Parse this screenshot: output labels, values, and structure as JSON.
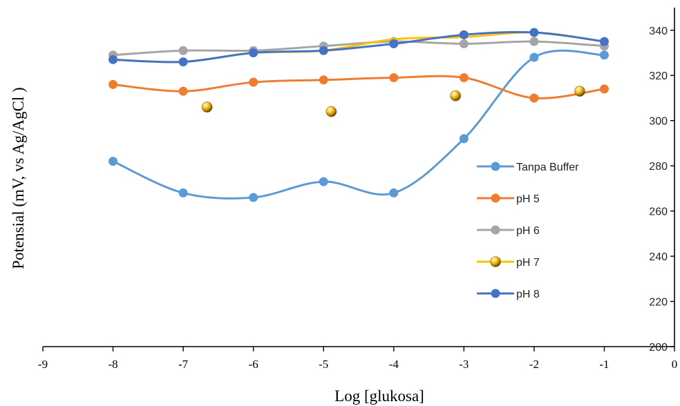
{
  "chart_data": {
    "type": "line",
    "title": "",
    "xlabel": "Log [glukosa]",
    "ylabel": "Potensial (mV, vs Ag/AgCl )",
    "xlim": [
      -9,
      0
    ],
    "ylim": [
      200,
      350
    ],
    "x_ticks": [
      "-9",
      "-8",
      "-7",
      "-6",
      "-5",
      "-4",
      "-3",
      "-2",
      "-1",
      "0"
    ],
    "y_ticks": [
      "200",
      "220",
      "240",
      "260",
      "280",
      "300",
      "320",
      "340"
    ],
    "grid": false,
    "legend_position": "right",
    "series": [
      {
        "name": "Tanpa Buffer",
        "color": "#5b9bd5",
        "marker": "circle",
        "points": [
          [
            -8,
            282
          ],
          [
            -7,
            268
          ],
          [
            -6,
            266
          ],
          [
            -5,
            273
          ],
          [
            -4,
            268
          ],
          [
            -3,
            292
          ],
          [
            -2,
            328
          ],
          [
            -1,
            329
          ]
        ]
      },
      {
        "name": "pH 5",
        "color": "#ed7d31",
        "marker": "circle",
        "points": [
          [
            -8,
            316
          ],
          [
            -7,
            313
          ],
          [
            -6,
            317
          ],
          [
            -5,
            318
          ],
          [
            -4,
            319
          ],
          [
            -3,
            319
          ],
          [
            -2,
            310
          ],
          [
            -1,
            314
          ]
        ]
      },
      {
        "name": "pH 6",
        "color": "#a5a5a5",
        "marker": "circle",
        "points": [
          [
            -8,
            329
          ],
          [
            -7,
            331
          ],
          [
            -6,
            331
          ],
          [
            -5,
            333
          ],
          [
            -4,
            335
          ],
          [
            -3,
            334
          ],
          [
            -2,
            335
          ],
          [
            -1,
            333
          ]
        ]
      },
      {
        "name": "pH 7",
        "color": "#ffc000",
        "marker": "sphere",
        "points": [
          [
            -8,
            327
          ],
          [
            -7,
            326
          ],
          [
            -6,
            330
          ],
          [
            -5,
            331
          ],
          [
            -4,
            336
          ],
          [
            -3,
            337
          ],
          [
            -2,
            339
          ],
          [
            -1,
            335
          ]
        ]
      },
      {
        "name": "pH 8",
        "color": "#4472c4",
        "marker": "circle",
        "points": [
          [
            -8,
            327
          ],
          [
            -7,
            326
          ],
          [
            -6,
            330
          ],
          [
            -5,
            331
          ],
          [
            -4,
            334
          ],
          [
            -3,
            338
          ],
          [
            -2,
            339
          ],
          [
            -1,
            335
          ]
        ]
      }
    ],
    "extra_points": [
      {
        "x": -6.66,
        "y": 306
      },
      {
        "x": -4.89,
        "y": 304
      },
      {
        "x": -3.12,
        "y": 311
      },
      {
        "x": -1.35,
        "y": 313
      }
    ]
  }
}
